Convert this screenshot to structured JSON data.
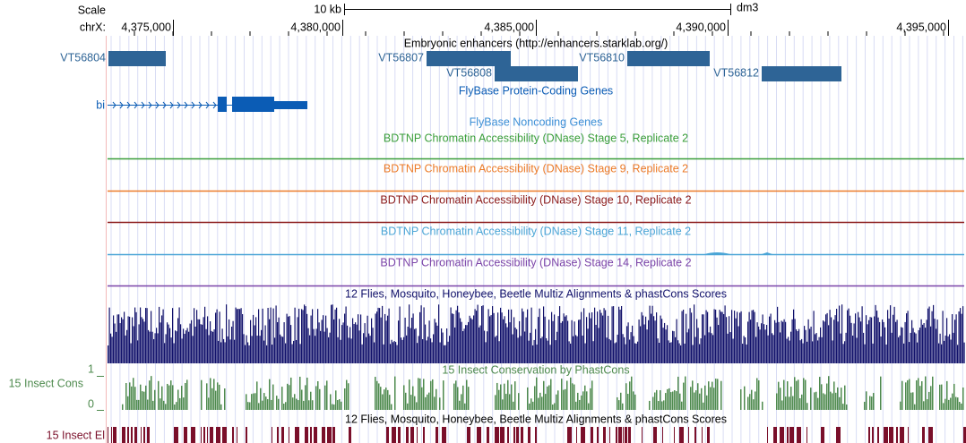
{
  "ruler": {
    "scale_label": "Scale",
    "scale_bar": "10 kb",
    "assembly": "dm3",
    "chrom_label": "chrX:",
    "ticks": [
      "4,375,000",
      "4,380,000",
      "4,385,000",
      "4,390,000",
      "4,395,000"
    ]
  },
  "tracks": [
    {
      "title": "Embryonic enhancers (http://enhancers.starklab.org/)",
      "color": "#2e6496",
      "items": [
        "VT56804",
        "VT56807",
        "VT56808",
        "VT56810",
        "VT56812"
      ]
    },
    {
      "title": "FlyBase Protein-Coding Genes",
      "color": "#0b5cb5",
      "items": [
        "bi"
      ]
    },
    {
      "title": "FlyBase Noncoding Genes",
      "color": "#3c8fd6"
    },
    {
      "title": "BDTNP Chromatin Accessibility (DNase) Stage 5, Replicate 2",
      "color": "#3a9e3a"
    },
    {
      "title": "BDTNP Chromatin Accessibility (DNase) Stage 9, Replicate 2",
      "color": "#ec7b28"
    },
    {
      "title": "BDTNP Chromatin Accessibility (DNase) Stage 10, Replicate 2",
      "color": "#8b1a1a"
    },
    {
      "title": "BDTNP Chromatin Accessibility (DNase) Stage 11, Replicate 2",
      "color": "#4aa5d6"
    },
    {
      "title": "BDTNP Chromatin Accessibility (DNase) Stage 14, Replicate 2",
      "color": "#7b44a8"
    },
    {
      "title": "12 Flies, Mosquito, Honeybee, Beetle Multiz Alignments & phastCons Scores",
      "color": "#12126b"
    },
    {
      "title": "15 Insect Conservation by PhastCons",
      "color": "#4e8a4e",
      "side_label": "15 Insect Cons",
      "axis_max": "1",
      "axis_min": "0"
    },
    {
      "title": "12 Flies, Mosquito, Honeybee, Beetle Multiz Alignments & phastCons Scores",
      "color": "#7a0f2a",
      "side_label": "15 Insect El"
    }
  ]
}
